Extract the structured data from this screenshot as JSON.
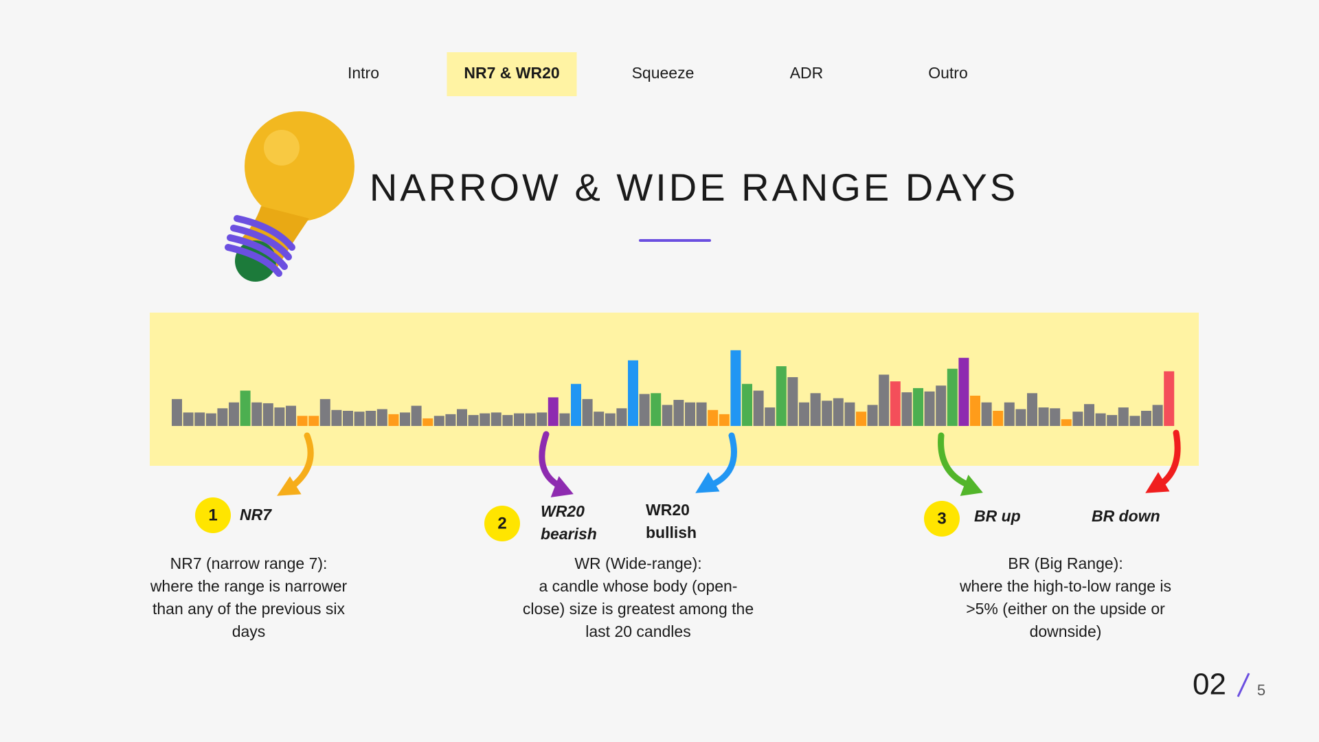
{
  "nav": {
    "items": [
      "Intro",
      "NR7 & WR20",
      "Squeeze",
      "ADR",
      "Outro"
    ],
    "active": 1
  },
  "title": "NARROW & WIDE RANGE DAYS",
  "range_bars": {
    "palette": {
      "gray": "#7b7b80",
      "green": "#4caf50",
      "orange": "#ff9c1a",
      "purple": "#8e2bb0",
      "blue": "#2196f3",
      "red": "#f44e5a"
    },
    "values": [
      32,
      16,
      16,
      15,
      21,
      28,
      42,
      28,
      27,
      22,
      24,
      12,
      12,
      32,
      19,
      18,
      17,
      18,
      20,
      14,
      16,
      24,
      9,
      12,
      14,
      20,
      13,
      15,
      16,
      13,
      15,
      15,
      16,
      34,
      15,
      50,
      32,
      17,
      15,
      21,
      78,
      38,
      39,
      25,
      31,
      28,
      28,
      19,
      14,
      90,
      50,
      42,
      22,
      71,
      58,
      28,
      39,
      30,
      33,
      28,
      17,
      25,
      61,
      53,
      40,
      45,
      41,
      48,
      68,
      81,
      36,
      28,
      18,
      28,
      20,
      39,
      22,
      21,
      8,
      17,
      26,
      15,
      13,
      22,
      12,
      18,
      25,
      65
    ],
    "colors": [
      "gray",
      "gray",
      "gray",
      "gray",
      "gray",
      "gray",
      "green",
      "gray",
      "gray",
      "gray",
      "gray",
      "orange",
      "orange",
      "gray",
      "gray",
      "gray",
      "gray",
      "gray",
      "gray",
      "orange",
      "gray",
      "gray",
      "orange",
      "gray",
      "gray",
      "gray",
      "gray",
      "gray",
      "gray",
      "gray",
      "gray",
      "gray",
      "gray",
      "purple",
      "gray",
      "blue",
      "gray",
      "gray",
      "gray",
      "gray",
      "blue",
      "gray",
      "green",
      "gray",
      "gray",
      "gray",
      "gray",
      "orange",
      "orange",
      "blue",
      "green",
      "gray",
      "gray",
      "green",
      "gray",
      "gray",
      "gray",
      "gray",
      "gray",
      "gray",
      "orange",
      "gray",
      "gray",
      "red",
      "gray",
      "green",
      "gray",
      "gray",
      "green",
      "purple",
      "orange",
      "gray",
      "orange",
      "gray",
      "gray",
      "gray",
      "gray",
      "gray",
      "orange",
      "gray",
      "gray",
      "gray",
      "gray",
      "gray",
      "gray",
      "gray",
      "gray",
      "red"
    ]
  },
  "callouts": [
    {
      "number": "1",
      "labels": [
        "NR7"
      ]
    },
    {
      "number": "2",
      "labels": [
        "WR20",
        "bearish"
      ]
    },
    {
      "labels": [
        "WR20",
        "bullish"
      ]
    },
    {
      "number": "3",
      "labels": [
        "BR up"
      ]
    },
    {
      "labels": [
        "BR down"
      ]
    }
  ],
  "descriptions": [
    [
      "NR7 (narrow range 7):",
      "where the range is narrower",
      "than any of the previous six",
      "days"
    ],
    [
      "WR (Wide-range):",
      "a candle whose body (open-",
      "close) size is greatest among the",
      "last 20 candles"
    ],
    [
      "BR (Big Range):",
      "where the high-to-low range is",
      ">5% (either on the upside or",
      "downside)"
    ]
  ],
  "page": {
    "current": "02",
    "total": "5"
  }
}
